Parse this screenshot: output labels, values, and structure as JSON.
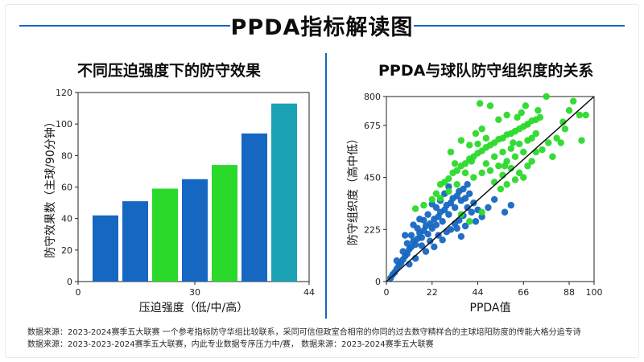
{
  "header": {
    "title": "PPDA指标解读图"
  },
  "footnotes": [
    "数据来源：2023-2024赛季五大联赛   一个参考指标防守华组比较联系，采同可信但政室合相帘的你同的过去数守精样合的主球培阳防度的传能大格分追专诗",
    "数据来源：2023-2023-2024赛季五大联赛，内此专业数据专序压力中/赛， 数据来源：2023-2024赛季五大联赛"
  ],
  "colors": {
    "blue": "#1667c1",
    "green": "#2bd92b",
    "teal": "#1ba2b5",
    "line": "#111111",
    "accent": "#1565c0"
  },
  "chart_data": [
    {
      "type": "bar",
      "title": "不同压迫强度下的防守效果",
      "xlabel": "压迫强度（低/中/高）",
      "ylabel": "防守效果数（主球/90分钟）",
      "ylim": [
        0,
        120
      ],
      "yticks": [
        0,
        20,
        40,
        60,
        80,
        100,
        120
      ],
      "xticks": [
        "0",
        "30",
        "44"
      ],
      "grid": false,
      "values": [
        42,
        51,
        59,
        65,
        74,
        94,
        113
      ],
      "bar_colors": [
        "blue",
        "blue",
        "green",
        "blue",
        "green",
        "blue",
        "teal"
      ]
    },
    {
      "type": "scatter",
      "title": "PPDA与球队防守组织度的关系",
      "xlabel": "PPDA值",
      "ylabel": "防守组织度（高中低）",
      "xlim": [
        0,
        100
      ],
      "ylim": [
        0,
        800
      ],
      "xticks": [
        "0",
        "22",
        "44",
        "66",
        "88",
        "100"
      ],
      "yticks": [
        "0",
        "225",
        "450",
        "675",
        "800"
      ],
      "grid": false,
      "trend_line": [
        [
          0,
          0
        ],
        [
          100,
          800
        ]
      ],
      "series": [
        {
          "color": "blue",
          "points": [
            [
              2,
              15
            ],
            [
              3,
              30
            ],
            [
              4,
              40
            ],
            [
              5,
              55
            ],
            [
              6,
              70
            ],
            [
              5,
              90
            ],
            [
              7,
              80
            ],
            [
              8,
              95
            ],
            [
              9,
              110
            ],
            [
              8,
              130
            ],
            [
              10,
              120
            ],
            [
              11,
              140
            ],
            [
              12,
              150
            ],
            [
              10,
              165
            ],
            [
              13,
              175
            ],
            [
              14,
              160
            ],
            [
              15,
              185
            ],
            [
              12,
              200
            ],
            [
              16,
              210
            ],
            [
              17,
              190
            ],
            [
              18,
              220
            ],
            [
              15,
              230
            ],
            [
              19,
              240
            ],
            [
              20,
              205
            ],
            [
              21,
              250
            ],
            [
              22,
              230
            ],
            [
              18,
              265
            ],
            [
              23,
              270
            ],
            [
              24,
              245
            ],
            [
              25,
              280
            ],
            [
              20,
              290
            ],
            [
              26,
              300
            ],
            [
              27,
              260
            ],
            [
              28,
              310
            ],
            [
              24,
              320
            ],
            [
              29,
              330
            ],
            [
              30,
              290
            ],
            [
              31,
              340
            ],
            [
              26,
              350
            ],
            [
              32,
              360
            ],
            [
              33,
              320
            ],
            [
              34,
              370
            ],
            [
              28,
              380
            ],
            [
              35,
              390
            ],
            [
              36,
              350
            ],
            [
              37,
              400
            ],
            [
              30,
              410
            ],
            [
              38,
              360
            ],
            [
              39,
              420
            ],
            [
              40,
              380
            ],
            [
              41,
              300
            ],
            [
              42,
              340
            ],
            [
              43,
              260
            ],
            [
              44,
              310
            ],
            [
              33,
              250
            ],
            [
              29,
              215
            ],
            [
              27,
              180
            ],
            [
              23,
              150
            ],
            [
              19,
              130
            ],
            [
              14,
              100
            ],
            [
              11,
              75
            ],
            [
              17,
              155
            ],
            [
              21,
              175
            ],
            [
              25,
              200
            ],
            [
              31,
              225
            ],
            [
              35,
              265
            ],
            [
              37,
              285
            ],
            [
              39,
              320
            ],
            [
              46,
              280
            ],
            [
              49,
              320
            ],
            [
              52,
              355
            ],
            [
              60,
              330
            ],
            [
              57,
              300
            ],
            [
              22,
              335
            ],
            [
              16,
              270
            ],
            [
              13,
              245
            ],
            [
              9,
              200
            ],
            [
              34,
              230
            ],
            [
              36,
              195
            ],
            [
              38,
              240
            ]
          ]
        },
        {
          "color": "green",
          "points": [
            [
              14,
              315
            ],
            [
              18,
              330
            ],
            [
              22,
              355
            ],
            [
              24,
              380
            ],
            [
              26,
              420
            ],
            [
              28,
              430
            ],
            [
              30,
              445
            ],
            [
              32,
              470
            ],
            [
              34,
              480
            ],
            [
              36,
              500
            ],
            [
              38,
              510
            ],
            [
              40,
              530
            ],
            [
              42,
              540
            ],
            [
              44,
              555
            ],
            [
              46,
              565
            ],
            [
              48,
              580
            ],
            [
              50,
              590
            ],
            [
              52,
              600
            ],
            [
              54,
              615
            ],
            [
              56,
              620
            ],
            [
              58,
              635
            ],
            [
              60,
              640
            ],
            [
              62,
              650
            ],
            [
              64,
              660
            ],
            [
              66,
              670
            ],
            [
              68,
              680
            ],
            [
              70,
              695
            ],
            [
              72,
              700
            ],
            [
              74,
              710
            ],
            [
              36,
              610
            ],
            [
              40,
              590
            ],
            [
              44,
              595
            ],
            [
              48,
              620
            ],
            [
              52,
              540
            ],
            [
              56,
              560
            ],
            [
              60,
              575
            ],
            [
              64,
              595
            ],
            [
              68,
              610
            ],
            [
              70,
              620
            ],
            [
              50,
              480
            ],
            [
              54,
              500
            ],
            [
              58,
              520
            ],
            [
              62,
              540
            ],
            [
              66,
              560
            ],
            [
              42,
              450
            ],
            [
              46,
              470
            ],
            [
              48,
              510
            ],
            [
              52,
              430
            ],
            [
              56,
              460
            ],
            [
              60,
              490
            ],
            [
              64,
              470
            ],
            [
              68,
              500
            ],
            [
              38,
              470
            ],
            [
              34,
              420
            ],
            [
              30,
              390
            ],
            [
              26,
              360
            ],
            [
              36,
              290
            ],
            [
              40,
              260
            ],
            [
              46,
              300
            ],
            [
              55,
              400
            ],
            [
              58,
              420
            ],
            [
              62,
              440
            ],
            [
              66,
              450
            ],
            [
              70,
              520
            ],
            [
              72,
              560
            ],
            [
              75,
              570
            ],
            [
              80,
              540
            ],
            [
              78,
              600
            ],
            [
              82,
              620
            ],
            [
              85,
              690
            ],
            [
              86,
              660
            ],
            [
              88,
              740
            ],
            [
              90,
              780
            ],
            [
              93,
              720
            ],
            [
              94,
              610
            ],
            [
              96,
              720
            ],
            [
              45,
              770
            ],
            [
              50,
              760
            ],
            [
              54,
              700
            ],
            [
              58,
              720
            ],
            [
              63,
              710
            ],
            [
              65,
              730
            ],
            [
              68,
              680
            ],
            [
              72,
              640
            ],
            [
              46,
              660
            ],
            [
              43,
              640
            ],
            [
              41,
              520
            ],
            [
              33,
              510
            ],
            [
              31,
              560
            ],
            [
              57,
              500
            ],
            [
              61,
              600
            ],
            [
              67,
              760
            ],
            [
              73,
              740
            ],
            [
              77,
              800
            ],
            [
              84,
              600
            ]
          ]
        }
      ]
    }
  ]
}
